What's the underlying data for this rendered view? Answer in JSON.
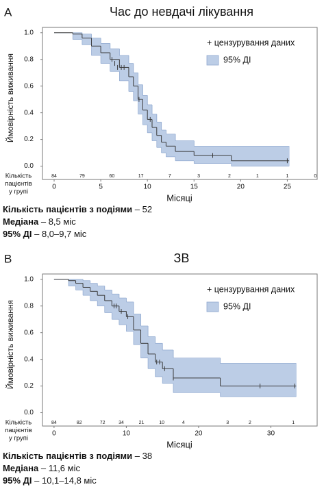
{
  "chart_data": [
    {
      "type": "km",
      "panel": "A",
      "title": "Час до невдачі лікування",
      "x_label": "Місяці",
      "y_label": "Ймовірність виживання",
      "xlim": [
        -1.25,
        28.2
      ],
      "ylim": [
        -0.1,
        1.04
      ],
      "xticks": [
        0,
        5,
        10,
        15,
        20,
        25
      ],
      "yticks": [
        {
          "value": 0,
          "label": "0.0"
        },
        0.2,
        0.4,
        0.6,
        0.8,
        {
          "value": 1,
          "label": "1.0"
        }
      ],
      "color": "#3a3a3a",
      "ci_color": "#bccde6",
      "legend": {
        "censor": "+ цензурування даних",
        "ci": "95% ДІ"
      },
      "x": [
        0,
        2,
        3,
        4,
        5,
        6,
        7,
        8,
        8.5,
        9,
        9.5,
        10,
        10.5,
        11,
        11.5,
        12,
        13,
        15,
        19,
        25.2
      ],
      "survival": [
        1,
        0.99,
        0.96,
        0.9,
        0.85,
        0.8,
        0.74,
        0.67,
        0.6,
        0.5,
        0.42,
        0.35,
        0.29,
        0.23,
        0.18,
        0.15,
        0.11,
        0.08,
        0.04,
        0.04
      ],
      "ci_upper": [
        1,
        1,
        0.99,
        0.96,
        0.92,
        0.88,
        0.83,
        0.77,
        0.7,
        0.61,
        0.53,
        0.46,
        0.39,
        0.33,
        0.27,
        0.24,
        0.19,
        0.15,
        0.15,
        0.15
      ],
      "ci_lower": [
        1,
        0.95,
        0.91,
        0.83,
        0.77,
        0.71,
        0.64,
        0.56,
        0.49,
        0.39,
        0.31,
        0.25,
        0.19,
        0.14,
        0.1,
        0.07,
        0.04,
        0.02,
        0,
        0
      ],
      "censored": {
        "x": [
          6.2,
          6.5,
          6.8,
          7.2,
          7.5,
          9.1,
          10.3,
          17,
          25
        ],
        "y": [
          0.8,
          0.77,
          0.74,
          0.74,
          0.74,
          0.5,
          0.35,
          0.08,
          0.04
        ]
      },
      "at_risk_label": [
        "Кількість",
        "пацієнтів",
        "у групі"
      ],
      "at_risk": {
        "x": [
          0,
          3,
          6.2,
          9.3,
          12.4,
          15.5,
          18.8,
          21.8,
          25,
          28
        ],
        "n": [
          84,
          79,
          60,
          17,
          7,
          3,
          2,
          1,
          1,
          0
        ]
      },
      "notes": [
        {
          "bold": "Кількість пацієнтів з подіями",
          "text": " – 52"
        },
        {
          "bold": "Медіана",
          "text": " – 8,5 міс"
        },
        {
          "bold": "95% ДІ",
          "text": " – 8,0–9,7 міс"
        }
      ]
    },
    {
      "type": "km",
      "panel": "B",
      "title": "ЗВ",
      "x_label": "Місяці",
      "y_label": "Ймовірність виживання",
      "xlim": [
        -1.6,
        36.4
      ],
      "ylim": [
        -0.1,
        1.04
      ],
      "xticks": [
        0,
        10,
        20,
        30
      ],
      "yticks": [
        {
          "value": 0,
          "label": "0.0"
        },
        0.2,
        0.4,
        0.6,
        0.8,
        {
          "value": 1,
          "label": "1.0"
        }
      ],
      "color": "#3a3a3a",
      "ci_color": "#bccde6",
      "legend": {
        "censor": "+ цензурування даних",
        "ci": "95% ДІ"
      },
      "x": [
        0,
        2,
        3,
        4,
        5,
        6,
        7,
        8,
        9,
        10,
        11,
        12,
        13,
        14,
        15,
        16.5,
        23,
        33.5
      ],
      "survival": [
        1,
        0.99,
        0.97,
        0.94,
        0.91,
        0.88,
        0.84,
        0.8,
        0.76,
        0.72,
        0.62,
        0.52,
        0.44,
        0.38,
        0.33,
        0.26,
        0.2,
        0.2
      ],
      "ci_upper": [
        1,
        1,
        1,
        0.99,
        0.97,
        0.95,
        0.92,
        0.89,
        0.86,
        0.83,
        0.74,
        0.65,
        0.57,
        0.52,
        0.47,
        0.41,
        0.37,
        0.37
      ],
      "ci_lower": [
        1,
        0.95,
        0.92,
        0.88,
        0.84,
        0.8,
        0.75,
        0.7,
        0.66,
        0.61,
        0.51,
        0.41,
        0.33,
        0.27,
        0.22,
        0.15,
        0.12,
        0.12
      ],
      "censored": {
        "x": [
          8.3,
          8.6,
          9.3,
          10.2,
          14.2,
          14.6,
          15.3,
          16.5,
          28.5,
          33.3
        ],
        "y": [
          0.8,
          0.8,
          0.76,
          0.72,
          0.38,
          0.38,
          0.33,
          0.26,
          0.2,
          0.2
        ]
      },
      "at_risk_label": [
        "Кількість",
        "пацієнтів",
        "у групі"
      ],
      "at_risk": {
        "x": [
          0,
          3.5,
          6.7,
          9.3,
          12.1,
          14.9,
          17.9,
          24,
          27.1,
          33.1
        ],
        "n": [
          84,
          82,
          72,
          34,
          21,
          10,
          4,
          3,
          2,
          1
        ]
      },
      "notes": [
        {
          "bold": "Кількість пацієнтів з подіями",
          "text": " – 38"
        },
        {
          "bold": "Медіана",
          "text": " – 11,6 міс"
        },
        {
          "bold": "95% ДІ",
          "text": " – 10,1–14,8 міс"
        }
      ]
    }
  ]
}
